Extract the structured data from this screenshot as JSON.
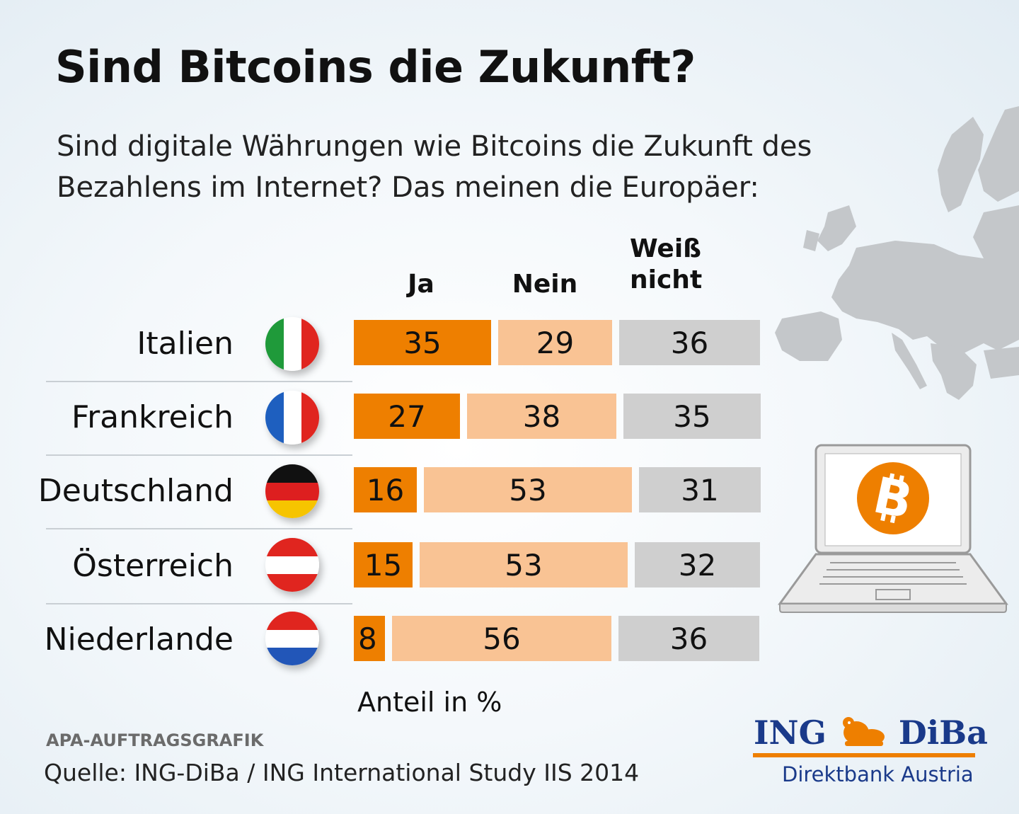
{
  "title": "Sind Bitcoins die Zukunft?",
  "subtitle": "Sind digitale Währungen wie Bitcoins die Zukunft des Bezahlens im Internet? Das meinen die Europäer:",
  "columns": [
    "Ja",
    "Nein",
    "Weiß nicht"
  ],
  "chart_data": {
    "type": "bar",
    "stacked": true,
    "categories": [
      "Italien",
      "Frankreich",
      "Deutschland",
      "Österreich",
      "Niederlande"
    ],
    "series": [
      {
        "name": "Ja",
        "values": [
          35,
          27,
          16,
          15,
          8
        ],
        "color": "#ee7f00"
      },
      {
        "name": "Nein",
        "values": [
          29,
          38,
          53,
          53,
          56
        ],
        "color": "#f9c394"
      },
      {
        "name": "Weiß nicht",
        "values": [
          36,
          35,
          31,
          32,
          36
        ],
        "color": "#cfcfcf"
      }
    ],
    "unit_label": "Anteil in %"
  },
  "flags": [
    "italy-flag",
    "france-flag",
    "germany-flag",
    "austria-flag",
    "netherlands-flag"
  ],
  "footer": {
    "agency": "APA-AUFTRAGSGRAFIK",
    "source": "Quelle: ING-DiBa / ING International Study IIS 2014"
  },
  "logo": {
    "left": "ING",
    "right": "DiBa",
    "subline": "Direktbank Austria"
  },
  "icons": [
    "europe-map-icon",
    "laptop-icon",
    "bitcoin-icon",
    "lion-icon"
  ]
}
